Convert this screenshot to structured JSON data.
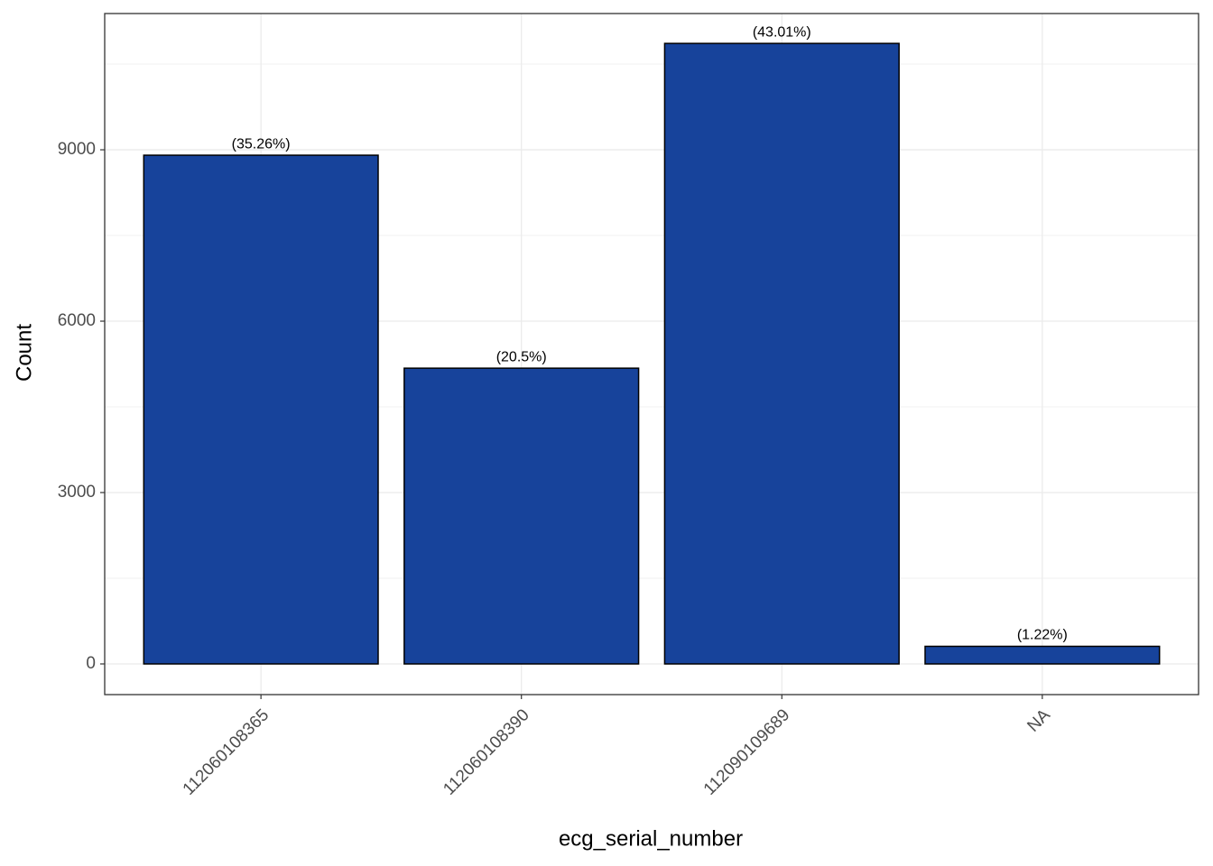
{
  "chart_data": {
    "type": "bar",
    "x_label": "ecg_serial_number",
    "y_label": "Count",
    "categories": [
      "112060108365",
      "112060108390",
      "112090109689",
      "NA"
    ],
    "values": [
      8905,
      5177,
      10862,
      308
    ],
    "annotations": [
      "(35.26%)",
      "(20.5%)",
      "(43.01%)",
      "(1.22%)"
    ],
    "color": "#17439b",
    "ylim": [
      -537,
      11385
    ],
    "yticks": [
      0,
      3000,
      6000,
      9000
    ],
    "grid": true
  }
}
